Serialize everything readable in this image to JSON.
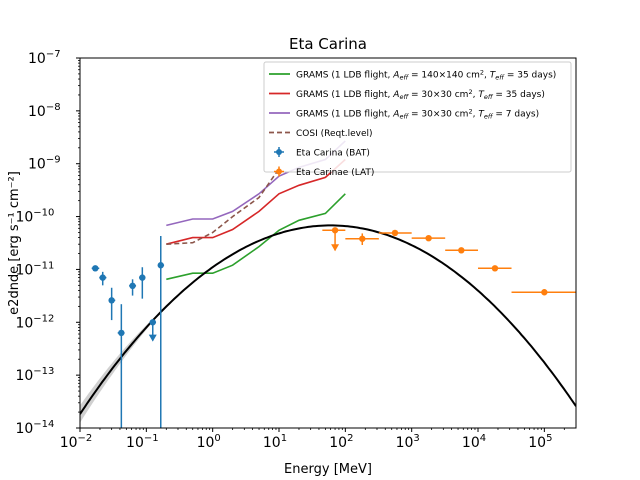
{
  "chart_data": {
    "type": "line",
    "title": "Eta Carina",
    "xlabel": "Energy [MeV]",
    "ylabel": "e2dnde [erg s⁻¹ cm⁻²]",
    "x_scale": "log",
    "y_scale": "log",
    "xlim": [
      0.01,
      300000
    ],
    "ylim": [
      1e-14,
      1e-07
    ],
    "x_ticks": [
      {
        "value": 0.01,
        "base": "10",
        "exp": "−2"
      },
      {
        "value": 0.1,
        "base": "10",
        "exp": "−1"
      },
      {
        "value": 1,
        "base": "10",
        "exp": "0"
      },
      {
        "value": 10,
        "base": "10",
        "exp": "1"
      },
      {
        "value": 100,
        "base": "10",
        "exp": "2"
      },
      {
        "value": 1000,
        "base": "10",
        "exp": "3"
      },
      {
        "value": 10000,
        "base": "10",
        "exp": "4"
      },
      {
        "value": 100000,
        "base": "10",
        "exp": "5"
      }
    ],
    "y_ticks": [
      {
        "value": 1e-14,
        "base": "10",
        "exp": "−14"
      },
      {
        "value": 1e-13,
        "base": "10",
        "exp": "−13"
      },
      {
        "value": 1e-12,
        "base": "10",
        "exp": "−12"
      },
      {
        "value": 1e-11,
        "base": "10",
        "exp": "−11"
      },
      {
        "value": 1e-10,
        "base": "10",
        "exp": "−10"
      },
      {
        "value": 1e-09,
        "base": "10",
        "exp": "−9"
      },
      {
        "value": 1e-08,
        "base": "10",
        "exp": "−8"
      },
      {
        "value": 1e-07,
        "base": "10",
        "exp": "−7"
      }
    ],
    "legend_position": "top-right",
    "series": [
      {
        "name": "GRAMS (1 LDB flight, A_eff=140×140 cm², T_eff=35 days)",
        "label_parts": {
          "pre": "GRAMS (1 LDB flight, ",
          "a": "A",
          "a_sub": "eff",
          "mid1": " = 140×140 cm",
          "sq": "2",
          "mid2": ", ",
          "t": "T",
          "t_sub": "eff",
          "post": " = 35 days)"
        },
        "type": "line",
        "color": "#2ca02c",
        "x": [
          0.2,
          0.5,
          1,
          2,
          5,
          10,
          20,
          50,
          100
        ],
        "y": [
          6.5e-12,
          8.5e-12,
          8.5e-12,
          1.2e-11,
          2.7e-11,
          5.5e-11,
          8.5e-11,
          1.15e-10,
          2.7e-10
        ]
      },
      {
        "name": "GRAMS (1 LDB flight, A_eff=30×30 cm², T_eff=35 days)",
        "label_parts": {
          "pre": "GRAMS (1 LDB flight, ",
          "a": "A",
          "a_sub": "eff",
          "mid1": " = 30×30 cm",
          "sq": "2",
          "mid2": ", ",
          "t": "T",
          "t_sub": "eff",
          "post": " = 35 days)"
        },
        "type": "line",
        "color": "#d62728",
        "x": [
          0.2,
          0.5,
          1,
          2,
          5,
          10,
          20,
          50,
          100
        ],
        "y": [
          3e-11,
          4e-11,
          4e-11,
          5.7e-11,
          1.25e-10,
          2.7e-10,
          3.9e-10,
          5.5e-10,
          1.2e-09
        ]
      },
      {
        "name": "GRAMS (1 LDB flight, A_eff=30×30 cm², T_eff=7 days)",
        "label_parts": {
          "pre": "GRAMS (1 LDB flight, ",
          "a": "A",
          "a_sub": "eff",
          "mid1": " = 30×30 cm",
          "sq": "2",
          "mid2": ", ",
          "t": "T",
          "t_sub": "eff",
          "post": " = 7 days)"
        },
        "type": "line",
        "color": "#9467bd",
        "x": [
          0.2,
          0.5,
          1,
          2,
          5,
          10,
          20,
          50,
          100
        ],
        "y": [
          6.8e-11,
          9e-11,
          9e-11,
          1.25e-10,
          2.7e-10,
          5.8e-10,
          8.5e-10,
          1.2e-09,
          2.7e-09
        ]
      },
      {
        "name": "COSI (Reqt.level)",
        "label_parts": {
          "pre": "COSI (Reqt.level)"
        },
        "type": "dashed",
        "color": "#8c564b",
        "x": [
          0.2,
          0.5,
          1,
          2,
          5,
          10
        ],
        "y": [
          3e-11,
          3.2e-11,
          5e-11,
          1e-10,
          2.3e-10,
          8e-10
        ]
      },
      {
        "name": "Eta Carina (BAT)",
        "label_parts": {
          "pre": "Eta Carina (BAT)"
        },
        "type": "errorbar",
        "color": "#1f77b4",
        "points": [
          {
            "x": 0.017,
            "y": 1.05e-11,
            "xlo": 0.015,
            "xhi": 0.0195,
            "ylo": 9.5e-12,
            "yhi": 1.15e-11,
            "ul": false
          },
          {
            "x": 0.022,
            "y": 7e-12,
            "xlo": 0.0195,
            "xhi": 0.025,
            "ylo": 5e-12,
            "yhi": 9e-12,
            "ul": false
          },
          {
            "x": 0.03,
            "y": 2.6e-12,
            "xlo": 0.027,
            "xhi": 0.034,
            "ylo": 1.1e-12,
            "yhi": 4.5e-12,
            "ul": false
          },
          {
            "x": 0.042,
            "y": 6.3e-13,
            "xlo": 0.037,
            "xhi": 0.047,
            "ylo": 1e-14,
            "yhi": 2.2e-12,
            "ul": false
          },
          {
            "x": 0.062,
            "y": 4.9e-12,
            "xlo": 0.055,
            "xhi": 0.07,
            "ylo": 3.2e-12,
            "yhi": 6.5e-12,
            "ul": false
          },
          {
            "x": 0.087,
            "y": 7e-12,
            "xlo": 0.078,
            "xhi": 0.096,
            "ylo": 2.8e-12,
            "yhi": 1.1e-11,
            "ul": false
          },
          {
            "x": 0.125,
            "y": 1e-12,
            "xlo": 0.112,
            "xhi": 0.14,
            "ylo": 4.5e-13,
            "yhi": 1e-12,
            "ul": true
          },
          {
            "x": 0.165,
            "y": 1.2e-11,
            "xlo": 0.15,
            "xhi": 0.185,
            "ylo": 1e-14,
            "yhi": 4.3e-11,
            "ul": false
          }
        ]
      },
      {
        "name": "Eta Carinae (LAT)",
        "label_parts": {
          "pre": "Eta Carinae (LAT)"
        },
        "type": "errorbar",
        "color": "#ff7f0e",
        "points": [
          {
            "x": 70,
            "y": 5.5e-11,
            "xlo": 45,
            "xhi": 100,
            "ylo": 2.3e-11,
            "yhi": 5.5e-11,
            "ul": true
          },
          {
            "x": 180,
            "y": 3.8e-11,
            "xlo": 100,
            "xhi": 320,
            "ylo": 2.9e-11,
            "yhi": 4.8e-11,
            "ul": false
          },
          {
            "x": 560,
            "y": 4.9e-11,
            "xlo": 320,
            "xhi": 1000,
            "ylo": 4.5e-11,
            "yhi": 5.4e-11,
            "ul": false
          },
          {
            "x": 1800,
            "y": 3.9e-11,
            "xlo": 1000,
            "xhi": 3200,
            "ylo": 3.6e-11,
            "yhi": 4.2e-11,
            "ul": false
          },
          {
            "x": 5600,
            "y": 2.3e-11,
            "xlo": 3200,
            "xhi": 10000,
            "ylo": 2.15e-11,
            "yhi": 2.5e-11,
            "ul": false
          },
          {
            "x": 18000,
            "y": 1.05e-11,
            "xlo": 10000,
            "xhi": 32000,
            "ylo": 9.5e-12,
            "yhi": 1.15e-11,
            "ul": false
          },
          {
            "x": 100000,
            "y": 3.7e-12,
            "xlo": 32000,
            "xhi": 300000,
            "ylo": 3.3e-12,
            "yhi": 4.2e-12,
            "ul": false
          }
        ]
      }
    ],
    "model_curve": {
      "color": "#000000",
      "band_color": "#b0b0b0",
      "peak_x": 60,
      "peak_y": 6.8e-11,
      "curvature": 0.25,
      "x_range": [
        0.01,
        300000
      ],
      "band_range": [
        0.01,
        0.2
      ]
    }
  }
}
